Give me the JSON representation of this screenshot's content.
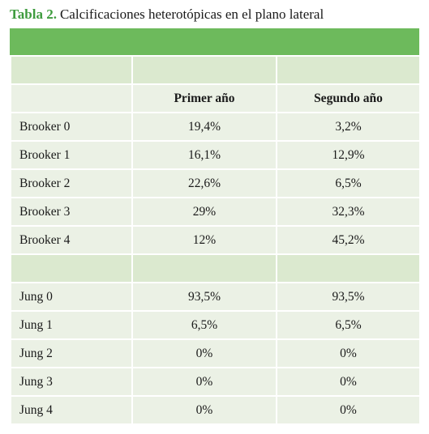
{
  "title": {
    "label": "Tabla 2.",
    "text": "Calcificaciones heterotópicas en el plano lateral"
  },
  "table": {
    "columns": [
      "Primer año",
      "Segundo año"
    ],
    "groups": [
      [
        [
          "Brooker 0",
          "19,4%",
          "3,2%"
        ],
        [
          "Brooker 1",
          "16,1%",
          "12,9%"
        ],
        [
          "Brooker 2",
          "22,6%",
          "6,5%"
        ],
        [
          "Brooker 3",
          "29%",
          "32,3%"
        ],
        [
          "Brooker 4",
          "12%",
          "45,2%"
        ]
      ],
      [
        [
          "Jung 0",
          "93,5%",
          "93,5%"
        ],
        [
          "Jung 1",
          "6,5%",
          "6,5%"
        ],
        [
          "Jung 2",
          "0%",
          "0%"
        ],
        [
          "Jung 3",
          "0%",
          "0%"
        ],
        [
          "Jung 4",
          "0%",
          "0%"
        ]
      ]
    ]
  }
}
